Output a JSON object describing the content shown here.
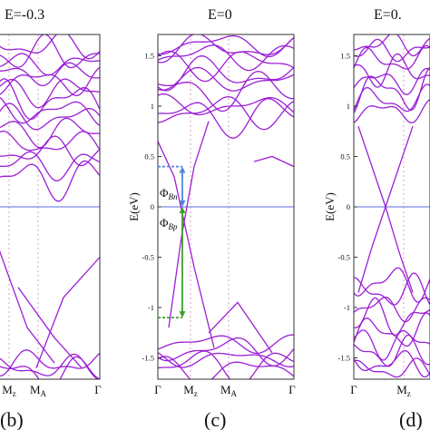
{
  "colors": {
    "band": "#9B1FD6",
    "fermi": "#5A6BE0",
    "axis": "#333333",
    "vline": "#D9A0C4",
    "blue_arrow": "#4C88D8",
    "green_arrow": "#3E9E2E"
  },
  "chart_data": [
    {
      "type": "line",
      "panel": "(b)",
      "title": "E=-0.3",
      "xlabel": "",
      "ylabel": "",
      "ylim": [
        -1.7,
        1.7
      ],
      "xticks": [
        "Mz",
        "MA",
        "Γ"
      ],
      "fermi_level": 0,
      "grid": false
    },
    {
      "type": "line",
      "panel": "(c)",
      "title": "E=0",
      "xlabel": "",
      "ylabel": "E(eV)",
      "ylim": [
        -1.7,
        1.7
      ],
      "yticks": [
        "1.5",
        "1",
        "0.5",
        "0",
        "-0.5",
        "-1",
        "-1.5"
      ],
      "xticks": [
        "Γ",
        "Mz",
        "MA",
        "Γ"
      ],
      "fermi_level": 0,
      "grid": false,
      "annotations": [
        {
          "label": "Φ",
          "sub": "Bn",
          "from": 0.4,
          "to": 0
        },
        {
          "label": "Φ",
          "sub": "Bp",
          "from": 0,
          "to": -1.1
        }
      ]
    },
    {
      "type": "line",
      "panel": "(d)",
      "title": "E=0.",
      "xlabel": "",
      "ylabel": "E(eV)",
      "ylim": [
        -1.7,
        1.7
      ],
      "yticks": [
        "1.5",
        "1",
        "0.5",
        "0",
        "-0.5",
        "-1",
        "-1.5"
      ],
      "xticks": [
        "Γ",
        "Mz"
      ],
      "fermi_level": 0,
      "grid": false
    }
  ]
}
